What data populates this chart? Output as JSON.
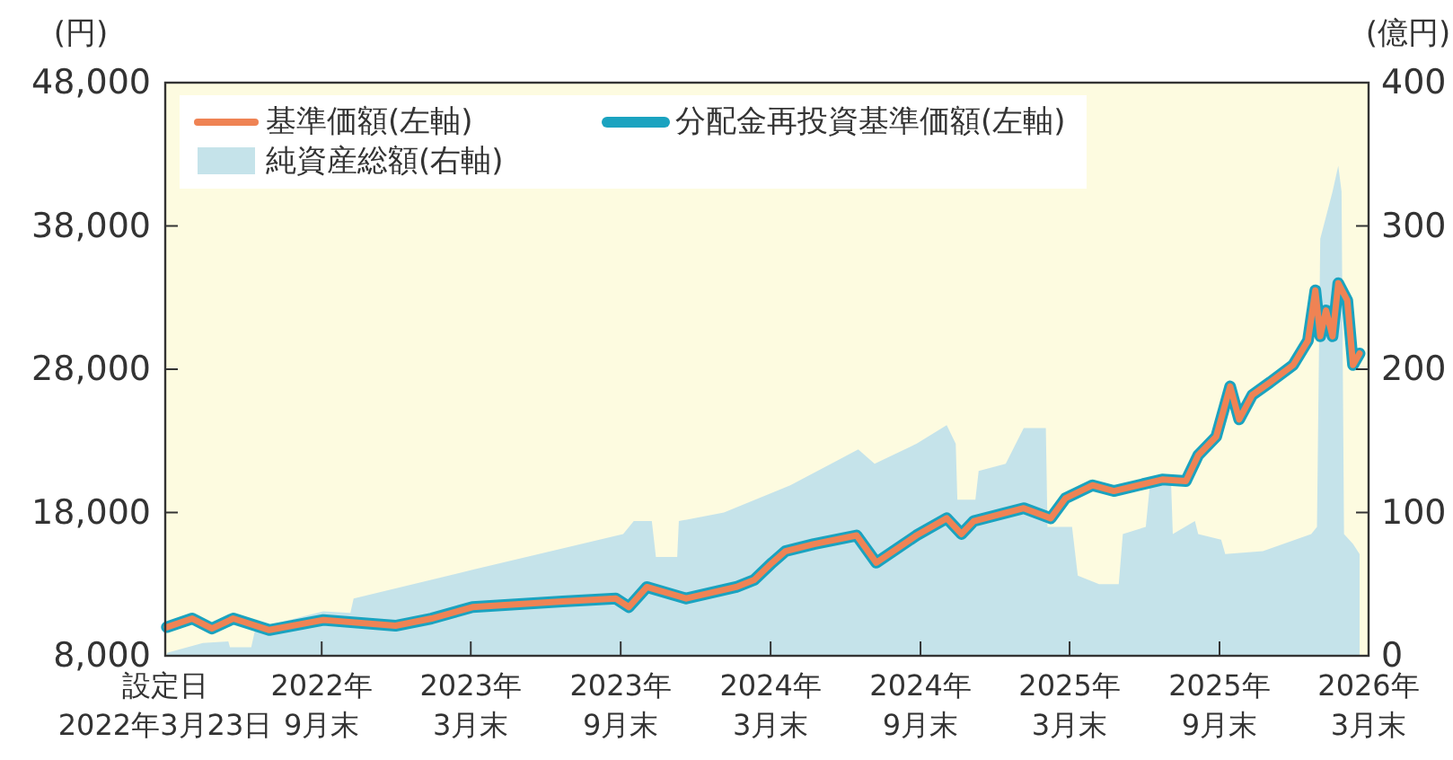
{
  "chart_data": {
    "type": "line",
    "ylabel": "(円)",
    "y2label": "(億円)",
    "x": [
      "2022-03-25",
      "2022-04-25",
      "2022-05-19",
      "2022-06-14",
      "2022-07-28",
      "2022-10-02",
      "2022-12-29",
      "2023-02-11",
      "2023-04-02",
      "2023-07-21",
      "2023-09-24",
      "2023-10-10",
      "2023-11-01",
      "2023-12-19",
      "2024-02-18",
      "2024-03-11",
      "2024-04-02",
      "2024-04-18",
      "2024-05-23",
      "2024-07-14",
      "2024-08-07",
      "2024-09-25",
      "2024-11-01",
      "2024-11-19",
      "2024-12-04",
      "2025-02-03",
      "2025-03-08",
      "2025-03-26",
      "2025-04-28",
      "2025-05-24",
      "2025-07-22",
      "2025-08-20",
      "2025-09-04",
      "2025-09-26",
      "2025-10-13",
      "2025-10-24",
      "2025-11-09",
      "2025-12-01",
      "2025-12-29",
      "2026-01-16",
      "2026-01-25",
      "2026-01-31",
      "2026-02-07",
      "2026-02-15",
      "2026-02-22",
      "2026-03-05",
      "2026-03-12",
      "2026-03-20"
    ],
    "series": [
      {
        "name": "純資産総額(右軸)",
        "type": "area",
        "axis": "y2",
        "color": "#c5e3ea",
        "x": [
          "2022-03-25",
          "2022-05-08",
          "2022-06-08",
          "2022-06-10",
          "2022-07-06",
          "2022-07-11",
          "2022-10-02",
          "2022-11-04",
          "2022-11-08",
          "2023-04-02",
          "2023-10-03",
          "2023-10-16",
          "2023-11-07",
          "2023-11-12",
          "2023-12-08",
          "2023-12-10",
          "2024-02-03",
          "2024-04-24",
          "2024-07-16",
          "2024-08-05",
          "2024-09-25",
          "2024-11-01",
          "2024-11-12",
          "2024-11-14",
          "2024-12-06",
          "2024-12-10",
          "2025-01-12",
          "2025-02-03",
          "2025-03-02",
          "2025-03-04",
          "2025-04-03",
          "2025-04-10",
          "2025-05-06",
          "2025-05-30",
          "2025-06-04",
          "2025-07-02",
          "2025-07-07",
          "2025-08-02",
          "2025-08-04",
          "2025-08-31",
          "2025-09-04",
          "2025-10-02",
          "2025-10-07",
          "2025-11-22",
          "2026-01-20",
          "2026-01-27",
          "2026-01-31",
          "2026-02-15",
          "2026-02-22",
          "2026-02-26",
          "2026-03-01",
          "2026-03-12",
          "2026-03-20"
        ],
        "values": [
          2,
          9,
          10,
          6,
          6,
          19,
          31,
          30,
          40,
          60,
          85,
          94,
          94,
          69,
          69,
          94,
          100,
          119,
          144,
          134,
          148,
          161,
          148,
          109,
          109,
          129,
          134,
          159,
          159,
          90,
          90,
          56,
          50,
          50,
          85,
          90,
          119,
          119,
          85,
          94,
          85,
          81,
          71,
          73,
          85,
          90,
          291,
          324,
          342,
          324,
          85,
          78,
          71
        ]
      },
      {
        "name": "分配金再投資基準価額(左軸)",
        "color": "#1aa3c0",
        "values": [
          10000,
          10600,
          9900,
          10600,
          9800,
          10500,
          10100,
          10600,
          11400,
          11800,
          12000,
          11400,
          12800,
          12000,
          12800,
          13300,
          14500,
          15300,
          15800,
          16400,
          14500,
          16400,
          17600,
          16500,
          17400,
          18300,
          17600,
          19000,
          19900,
          19500,
          20300,
          20200,
          22000,
          23300,
          26800,
          24500,
          26200,
          27100,
          28300,
          30000,
          33500,
          30300,
          32100,
          30300,
          34000,
          32800,
          28300,
          29100
        ]
      },
      {
        "name": "基準価額(左軸)",
        "color": "#ef8354",
        "values": [
          10000,
          10600,
          9900,
          10600,
          9800,
          10500,
          10100,
          10600,
          11400,
          11800,
          12000,
          11400,
          12800,
          12000,
          12800,
          13300,
          14500,
          15300,
          15800,
          16400,
          14500,
          16400,
          17600,
          16500,
          17400,
          18300,
          17600,
          19000,
          19900,
          19500,
          20300,
          20200,
          22000,
          23300,
          26800,
          24500,
          26200,
          27100,
          28300,
          30000,
          33500,
          30300,
          32100,
          30300,
          34000,
          32800,
          28300,
          29100
        ]
      }
    ],
    "xlim": [
      "2022-03-23",
      "2026-03-31"
    ],
    "xticks": [
      {
        "value": "2022-03-23",
        "label": "設定日\n2022年3月23日"
      },
      {
        "value": "2022-09-30",
        "label": "2022年\n9月末"
      },
      {
        "value": "2023-03-31",
        "label": "2023年\n3月末"
      },
      {
        "value": "2023-09-30",
        "label": "2023年\n9月末"
      },
      {
        "value": "2024-03-31",
        "label": "2024年\n3月末"
      },
      {
        "value": "2024-09-30",
        "label": "2024年\n9月末"
      },
      {
        "value": "2025-03-31",
        "label": "2025年\n3月末"
      },
      {
        "value": "2025-09-30",
        "label": "2025年\n9月末"
      },
      {
        "value": "2026-03-31",
        "label": "2026年\n3月末"
      }
    ],
    "ylim": [
      8000,
      48000
    ],
    "yticks": [
      {
        "value": 8000,
        "label": "8,000"
      },
      {
        "value": 18000,
        "label": "18,000"
      },
      {
        "value": 28000,
        "label": "28,000"
      },
      {
        "value": 38000,
        "label": "38,000"
      },
      {
        "value": 48000,
        "label": "48,000"
      }
    ],
    "y2lim": [
      0,
      400
    ],
    "y2ticks": [
      0,
      100,
      200,
      300,
      400
    ],
    "legend": "top left",
    "grid": false
  }
}
